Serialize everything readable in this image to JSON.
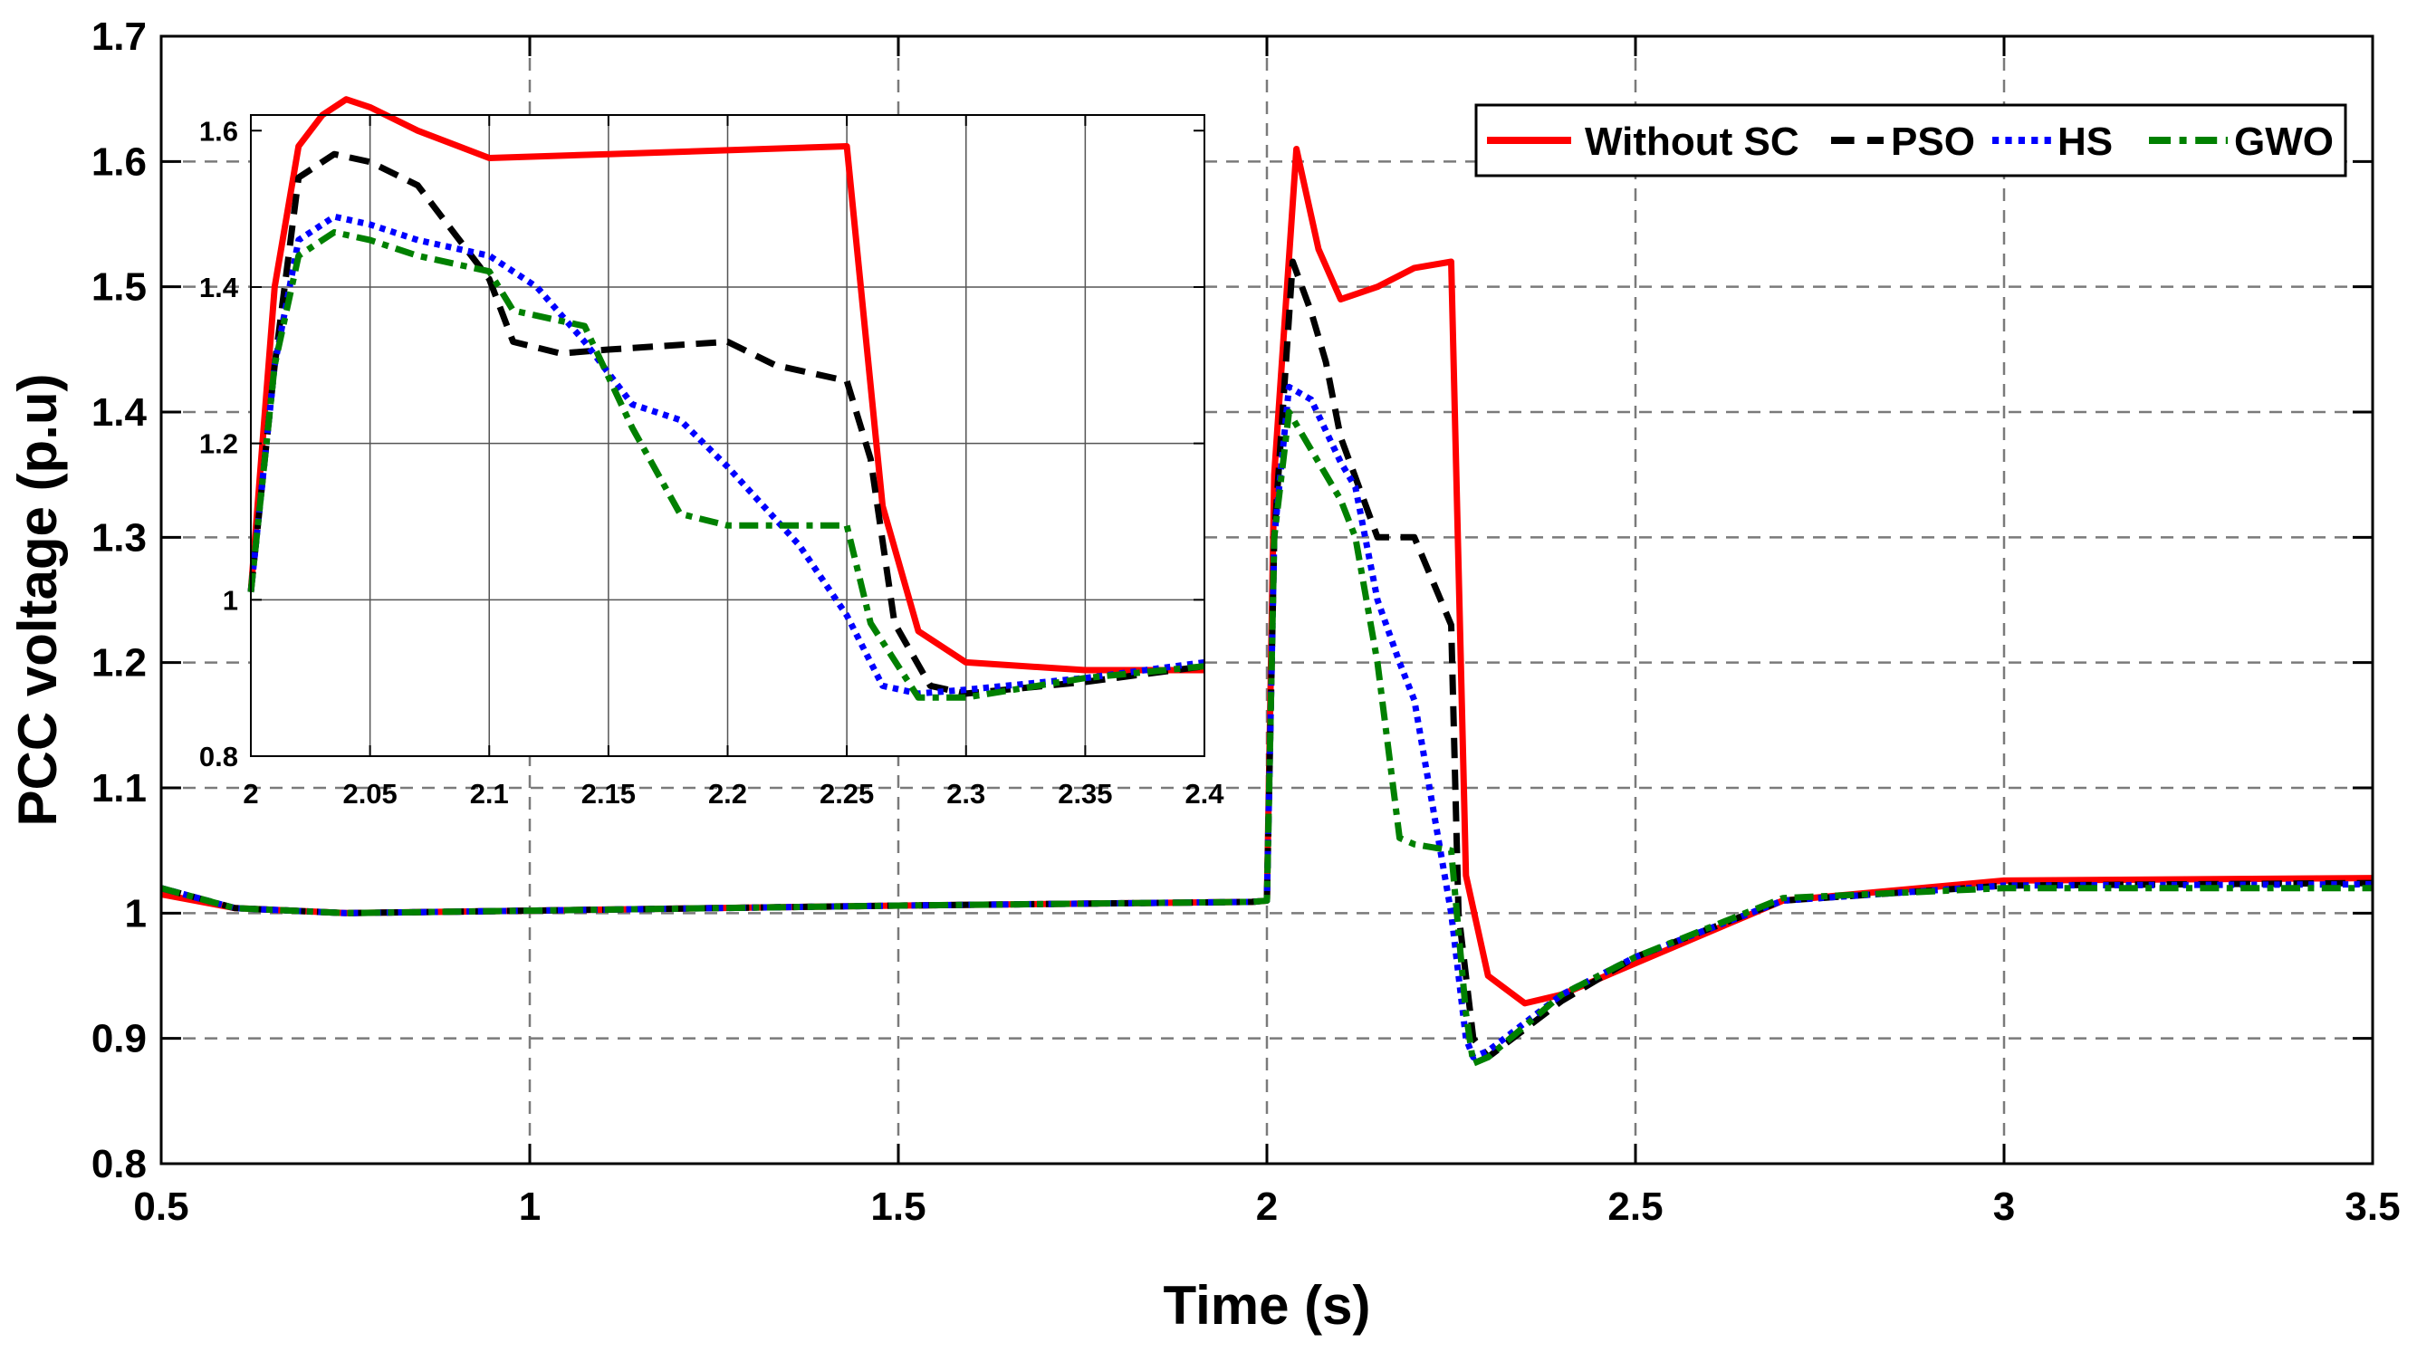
{
  "chart_data": [
    {
      "type": "line",
      "xlabel": "Time (s)",
      "ylabel": "PCC voltage (p.u)",
      "xlim": [
        0.5,
        3.5
      ],
      "ylim": [
        0.8,
        1.7
      ],
      "xticks": [
        0.5,
        1,
        1.5,
        2,
        2.5,
        3,
        3.5
      ],
      "xtick_labels": [
        "0.5",
        "1",
        "1.5",
        "2",
        "2.5",
        "3",
        "3.5"
      ],
      "yticks": [
        0.8,
        0.9,
        1.0,
        1.1,
        1.2,
        1.3,
        1.4,
        1.5,
        1.6,
        1.7
      ],
      "ytick_labels": [
        "0.8",
        "0.9",
        "1",
        "1.1",
        "1.2",
        "1.3",
        "1.4",
        "1.5",
        "1.6",
        "1.7"
      ],
      "grid": true,
      "legend_position": "top-right",
      "series": [
        {
          "name": "Without SC",
          "color": "#ff0000",
          "dash": "solid",
          "x": [
            0.5,
            0.6,
            0.75,
            1.0,
            1.5,
            1.98,
            2.0,
            2.01,
            2.04,
            2.07,
            2.1,
            2.15,
            2.2,
            2.25,
            2.27,
            2.3,
            2.35,
            2.4,
            2.5,
            2.7,
            3.0,
            3.5
          ],
          "y": [
            1.015,
            1.004,
            1.0,
            1.002,
            1.006,
            1.009,
            1.01,
            1.35,
            1.61,
            1.53,
            1.49,
            1.5,
            1.515,
            1.52,
            1.03,
            0.95,
            0.928,
            0.935,
            0.96,
            1.01,
            1.026,
            1.028
          ]
        },
        {
          "name": "PSO",
          "color": "#000000",
          "dash": "dashed",
          "x": [
            0.5,
            0.6,
            0.75,
            1.0,
            1.5,
            1.98,
            2.0,
            2.01,
            2.035,
            2.06,
            2.08,
            2.1,
            2.15,
            2.2,
            2.25,
            2.26,
            2.28,
            2.3,
            2.4,
            2.5,
            2.7,
            3.0,
            3.5
          ],
          "y": [
            1.02,
            1.004,
            1.0,
            1.002,
            1.006,
            1.009,
            1.01,
            1.3,
            1.52,
            1.48,
            1.44,
            1.38,
            1.3,
            1.3,
            1.23,
            1.0,
            0.9,
            0.885,
            0.93,
            0.965,
            1.01,
            1.022,
            1.024
          ]
        },
        {
          "name": "HS",
          "color": "#0000ff",
          "dash": "dotted",
          "x": [
            0.5,
            0.6,
            0.75,
            1.0,
            1.5,
            1.98,
            2.0,
            2.01,
            2.03,
            2.06,
            2.1,
            2.12,
            2.15,
            2.18,
            2.2,
            2.25,
            2.27,
            2.28,
            2.3,
            2.4,
            2.5,
            2.7,
            3.0,
            3.5
          ],
          "y": [
            1.02,
            1.004,
            1.0,
            1.002,
            1.006,
            1.009,
            1.01,
            1.3,
            1.42,
            1.41,
            1.36,
            1.34,
            1.25,
            1.2,
            1.17,
            1.0,
            0.9,
            0.885,
            0.89,
            0.935,
            0.965,
            1.01,
            1.022,
            1.023
          ]
        },
        {
          "name": "GWO",
          "color": "#008000",
          "dash": "dashdot",
          "x": [
            0.5,
            0.6,
            0.75,
            1.0,
            1.5,
            1.98,
            2.0,
            2.01,
            2.03,
            2.06,
            2.1,
            2.12,
            2.15,
            2.18,
            2.2,
            2.25,
            2.27,
            2.28,
            2.3,
            2.4,
            2.5,
            2.7,
            3.0,
            3.5
          ],
          "y": [
            1.02,
            1.004,
            1.0,
            1.002,
            1.006,
            1.009,
            1.01,
            1.3,
            1.4,
            1.37,
            1.33,
            1.3,
            1.2,
            1.06,
            1.055,
            1.05,
            0.92,
            0.88,
            0.885,
            0.935,
            0.965,
            1.012,
            1.02,
            1.02
          ]
        }
      ]
    },
    {
      "type": "line",
      "role": "inset",
      "xlabel": "",
      "ylabel": "",
      "xlim": [
        2.0,
        2.4
      ],
      "ylim": [
        0.8,
        1.62
      ],
      "xticks": [
        2.0,
        2.05,
        2.1,
        2.15,
        2.2,
        2.25,
        2.3,
        2.35,
        2.4
      ],
      "xtick_labels": [
        "2",
        "2.05",
        "2.1",
        "2.15",
        "2.2",
        "2.25",
        "2.3",
        "2.35",
        "2.4"
      ],
      "yticks": [
        0.8,
        1.0,
        1.2,
        1.4,
        1.6
      ],
      "ytick_labels": [
        "0.8",
        "1",
        "1.2",
        "1.4",
        "1.6"
      ],
      "grid": true,
      "series": [
        {
          "name": "Without SC",
          "color": "#ff0000",
          "dash": "solid",
          "x": [
            2.0,
            2.01,
            2.02,
            2.03,
            2.04,
            2.05,
            2.07,
            2.1,
            2.15,
            2.2,
            2.25,
            2.265,
            2.28,
            2.3,
            2.35,
            2.4
          ],
          "y": [
            1.01,
            1.4,
            1.58,
            1.62,
            1.64,
            1.63,
            1.6,
            1.565,
            1.57,
            1.575,
            1.58,
            1.12,
            0.96,
            0.92,
            0.91,
            0.91
          ]
        },
        {
          "name": "PSO",
          "color": "#000000",
          "dash": "dashed",
          "x": [
            2.0,
            2.01,
            2.02,
            2.035,
            2.05,
            2.07,
            2.1,
            2.11,
            2.13,
            2.15,
            2.2,
            2.22,
            2.25,
            2.26,
            2.27,
            2.285,
            2.3,
            2.35,
            2.4
          ],
          "y": [
            1.01,
            1.3,
            1.54,
            1.57,
            1.56,
            1.53,
            1.41,
            1.33,
            1.315,
            1.32,
            1.33,
            1.3,
            1.28,
            1.18,
            0.97,
            0.89,
            0.88,
            0.895,
            0.915
          ]
        },
        {
          "name": "HS",
          "color": "#0000ff",
          "dash": "dotted",
          "x": [
            2.0,
            2.01,
            2.02,
            2.035,
            2.05,
            2.07,
            2.1,
            2.12,
            2.14,
            2.16,
            2.18,
            2.2,
            2.23,
            2.25,
            2.265,
            2.28,
            2.3,
            2.35,
            2.4
          ],
          "y": [
            1.01,
            1.3,
            1.46,
            1.49,
            1.48,
            1.46,
            1.44,
            1.4,
            1.33,
            1.25,
            1.23,
            1.17,
            1.07,
            0.98,
            0.89,
            0.88,
            0.885,
            0.9,
            0.92
          ]
        },
        {
          "name": "GWO",
          "color": "#008000",
          "dash": "dashdot",
          "x": [
            2.0,
            2.01,
            2.02,
            2.035,
            2.05,
            2.07,
            2.1,
            2.11,
            2.14,
            2.16,
            2.18,
            2.2,
            2.25,
            2.26,
            2.28,
            2.3,
            2.35,
            2.4
          ],
          "y": [
            1.01,
            1.3,
            1.44,
            1.47,
            1.46,
            1.44,
            1.42,
            1.37,
            1.35,
            1.22,
            1.11,
            1.095,
            1.095,
            0.97,
            0.875,
            0.875,
            0.9,
            0.915
          ]
        }
      ]
    }
  ]
}
